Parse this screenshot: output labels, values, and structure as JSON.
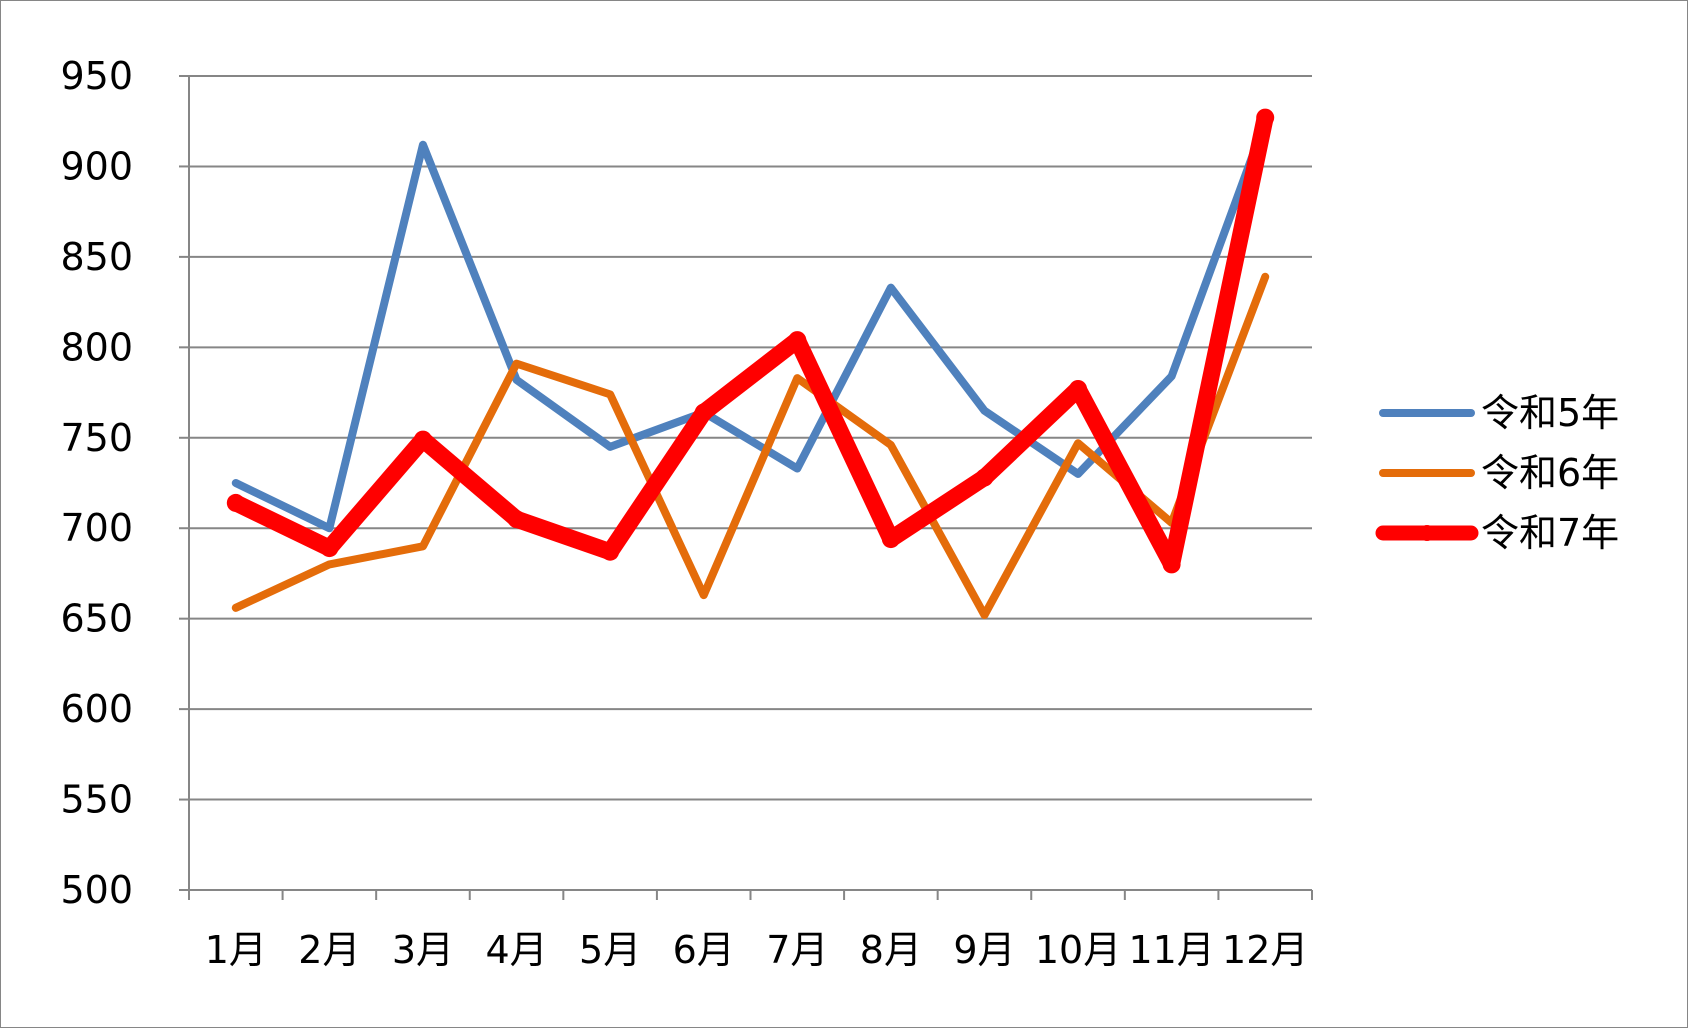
{
  "chart_data": {
    "type": "line",
    "title": "",
    "xlabel": "",
    "ylabel": "",
    "categories": [
      "1月",
      "2月",
      "3月",
      "4月",
      "5月",
      "6月",
      "7月",
      "8月",
      "9月",
      "10月",
      "11月",
      "12月"
    ],
    "ylim": [
      500,
      950
    ],
    "yticks": [
      500,
      550,
      600,
      650,
      700,
      750,
      800,
      850,
      900,
      950
    ],
    "grid": true,
    "legend_position": "right",
    "series": [
      {
        "name": "令和5年",
        "color": "#4f81bd",
        "line_width": "thin",
        "values": [
          725,
          700,
          912,
          782,
          745,
          764,
          733,
          833,
          765,
          730,
          784,
          925
        ]
      },
      {
        "name": "令和6年",
        "color": "#e46c0a",
        "line_width": "thin",
        "values": [
          656,
          680,
          690,
          791,
          774,
          663,
          783,
          746,
          652,
          747,
          703,
          839
        ]
      },
      {
        "name": "令和7年",
        "color": "#ff0000",
        "line_width": "thick",
        "values": [
          714,
          689,
          749,
          705,
          687,
          764,
          804,
          694,
          728,
          777,
          680,
          927
        ]
      }
    ]
  }
}
